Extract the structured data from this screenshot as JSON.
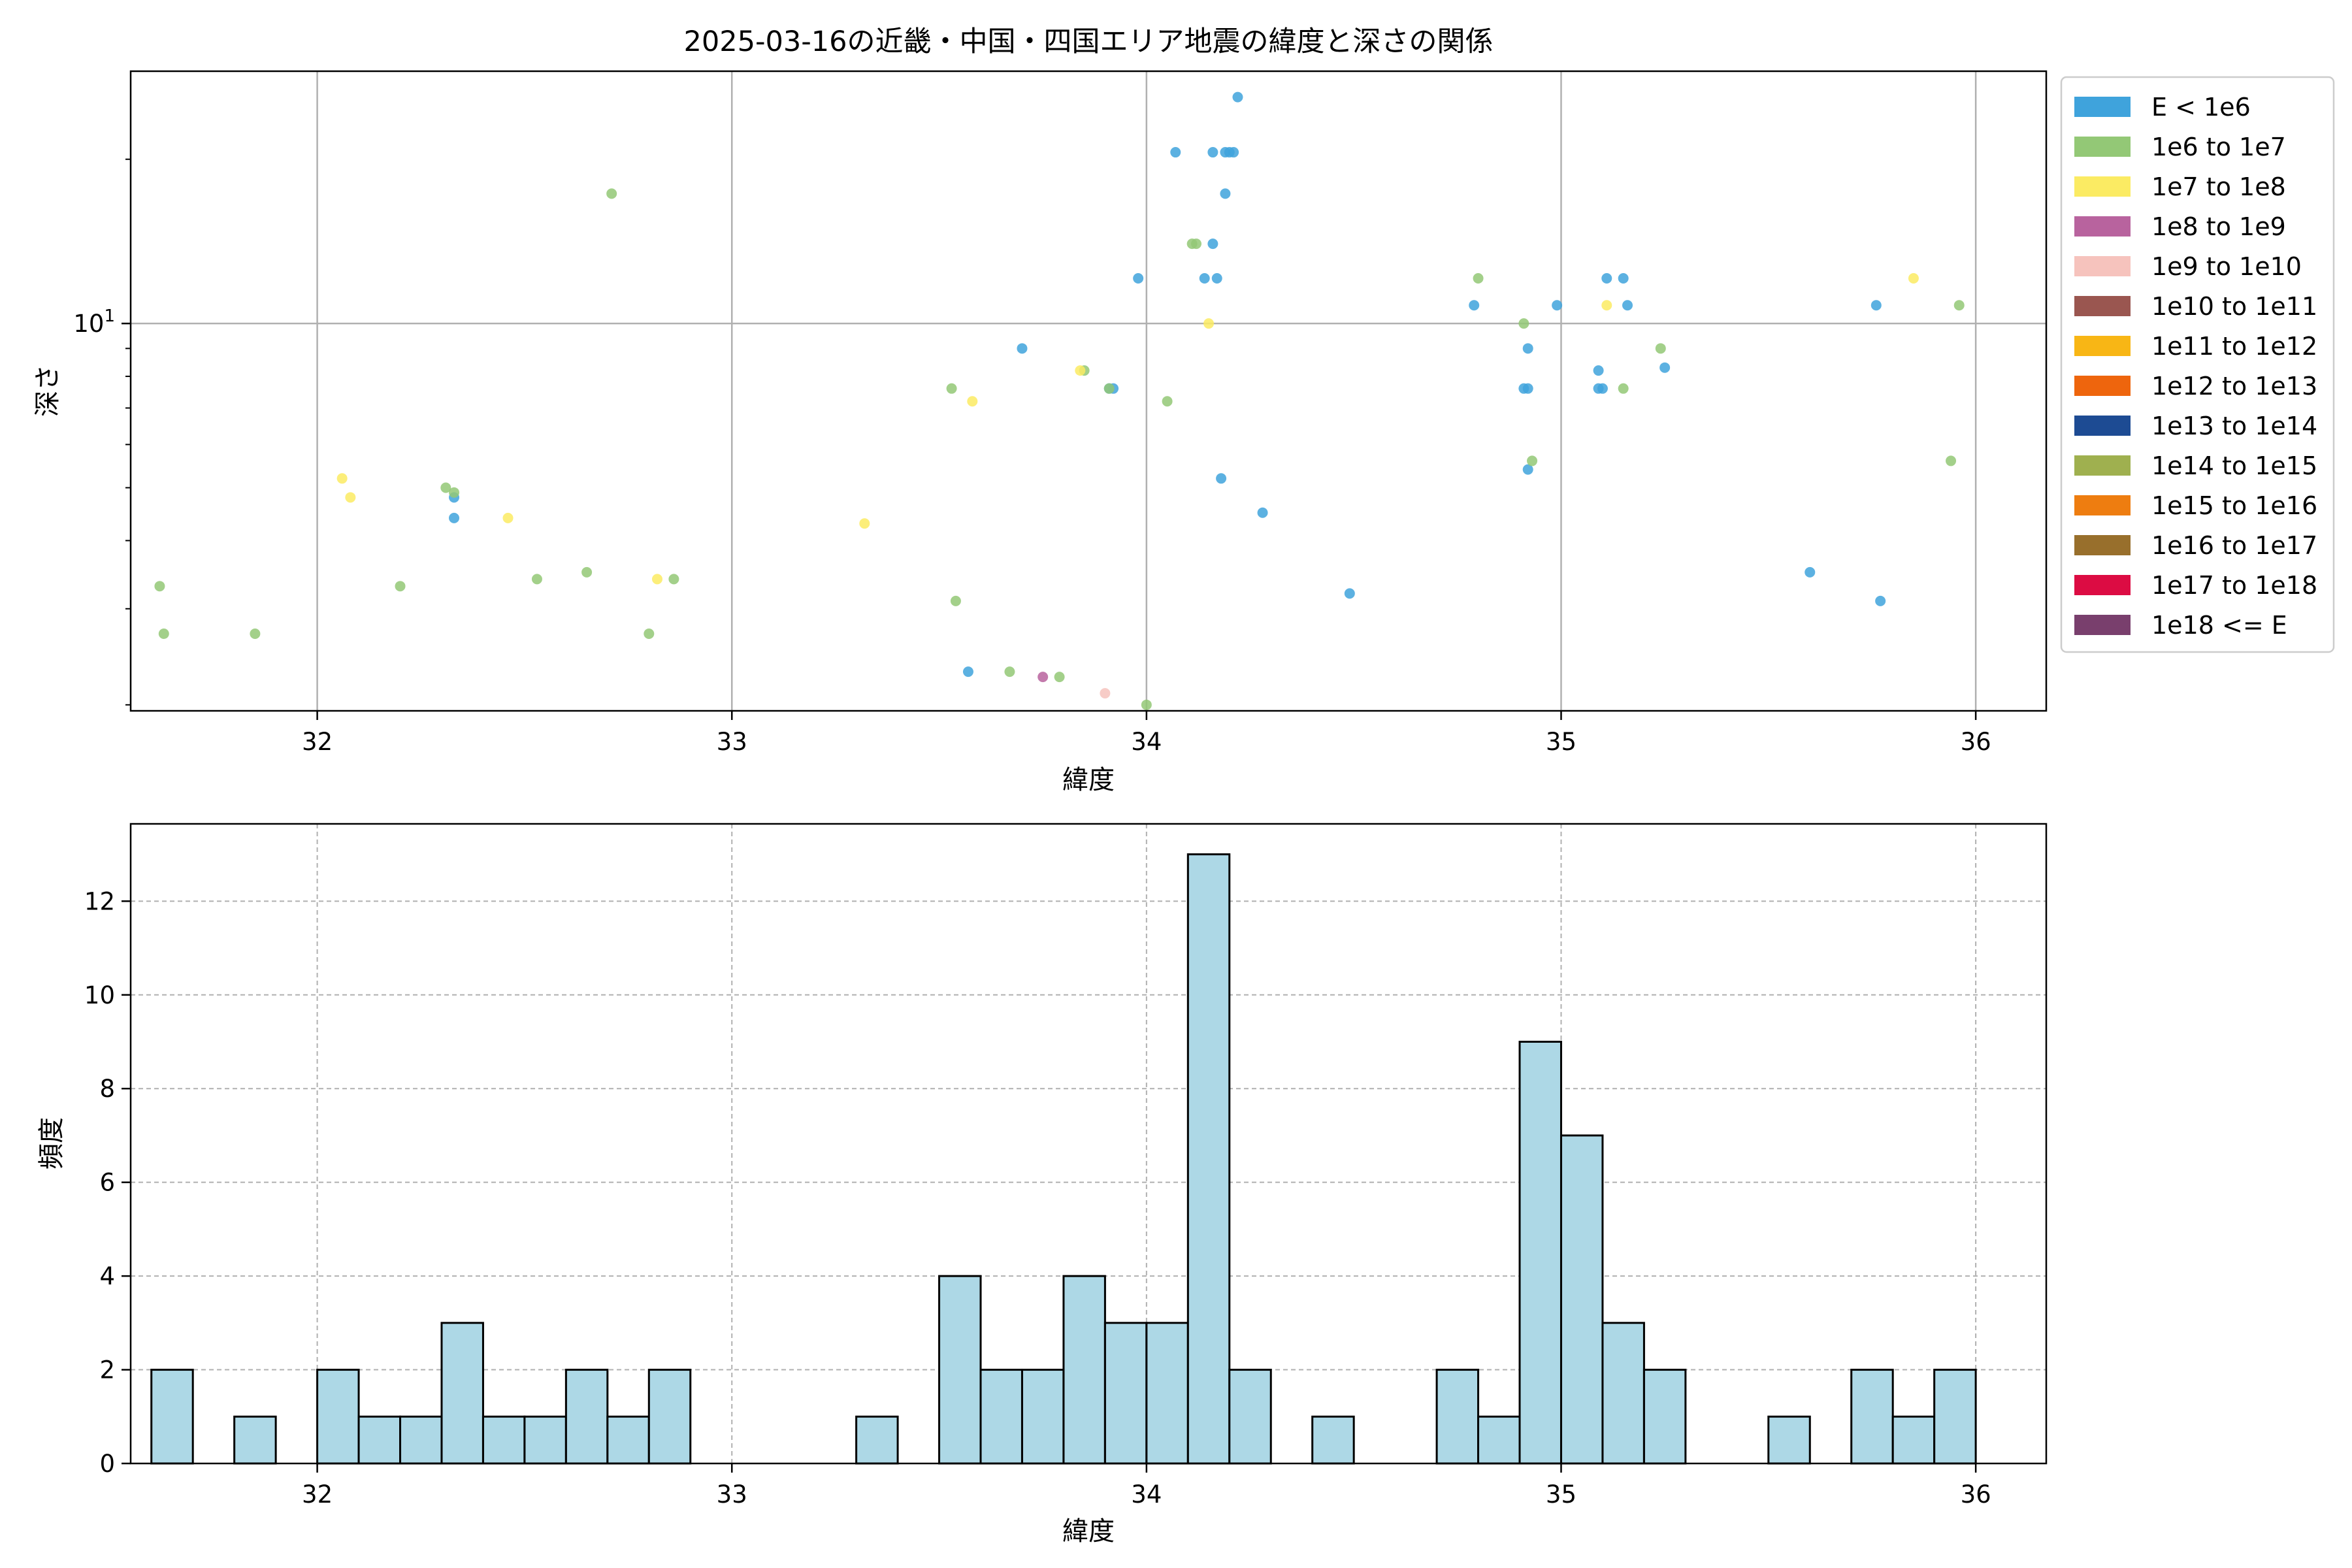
{
  "chart_data": [
    {
      "type": "scatter",
      "title": "2025-03-16の近畿・中国・四国エリア地震の緯度と深さの関係",
      "xlabel": "緯度",
      "ylabel": "深さ",
      "xlim": [
        31.55,
        36.17
      ],
      "ylim": [
        1.95,
        29
      ],
      "yscale": "log",
      "xticks": [
        32,
        33,
        34,
        35,
        36
      ],
      "xtick_labels": [
        "32",
        "33",
        "34",
        "35",
        "36"
      ],
      "ytick_label": "10¹",
      "grid": true,
      "legend_placement": "outside-right-top",
      "legend": [
        {
          "label": "E < 1e6",
          "color": "#3fa3dc"
        },
        {
          "label": "1e6 to 1e7",
          "color": "#93c876"
        },
        {
          "label": "1e7 to 1e8",
          "color": "#fbeb63"
        },
        {
          "label": "1e8 to 1e9",
          "color": "#b8639e"
        },
        {
          "label": "1e9 to 1e10",
          "color": "#f6c3bd"
        },
        {
          "label": "1e10 to 1e11",
          "color": "#9a5650"
        },
        {
          "label": "1e11 to 1e12",
          "color": "#f8b615"
        },
        {
          "label": "1e12 to 1e13",
          "color": "#ee650d"
        },
        {
          "label": "1e13 to 1e14",
          "color": "#1d4b93"
        },
        {
          "label": "1e14 to 1e15",
          "color": "#9fb04f"
        },
        {
          "label": "1e15 to 1e16",
          "color": "#ee7d10"
        },
        {
          "label": "1e16 to 1e17",
          "color": "#986f2c"
        },
        {
          "label": "1e17 to 1e18",
          "color": "#dc0c43"
        },
        {
          "label": "1e18 <= E",
          "color": "#793f6d"
        }
      ],
      "series": [
        {
          "color": "#3fa3dc",
          "points": [
            [
              32.33,
              4.8
            ],
            [
              32.33,
              4.4
            ],
            [
              33.57,
              2.3
            ],
            [
              33.7,
              9.0
            ],
            [
              33.91,
              7.6
            ],
            [
              33.92,
              7.6
            ],
            [
              33.98,
              12.1
            ],
            [
              34.07,
              20.6
            ],
            [
              34.14,
              12.1
            ],
            [
              34.16,
              20.6
            ],
            [
              34.16,
              14.0
            ],
            [
              34.17,
              12.1
            ],
            [
              34.18,
              5.2
            ],
            [
              34.19,
              20.6
            ],
            [
              34.19,
              17.3
            ],
            [
              34.2,
              20.6
            ],
            [
              34.21,
              20.6
            ],
            [
              34.22,
              26.0
            ],
            [
              34.28,
              4.5
            ],
            [
              34.49,
              3.2
            ],
            [
              34.79,
              10.8
            ],
            [
              34.99,
              10.8
            ],
            [
              34.91,
              7.6
            ],
            [
              34.92,
              7.6
            ],
            [
              34.92,
              9.0
            ],
            [
              34.92,
              5.4
            ],
            [
              35.09,
              8.2
            ],
            [
              35.09,
              7.6
            ],
            [
              35.1,
              7.6
            ],
            [
              35.11,
              12.1
            ],
            [
              35.15,
              12.1
            ],
            [
              35.16,
              10.8
            ],
            [
              35.25,
              8.3
            ],
            [
              35.6,
              3.5
            ],
            [
              35.76,
              10.8
            ],
            [
              35.77,
              3.1
            ]
          ]
        },
        {
          "color": "#93c876",
          "points": [
            [
              31.62,
              3.3
            ],
            [
              31.63,
              2.7
            ],
            [
              31.85,
              2.7
            ],
            [
              32.2,
              3.3
            ],
            [
              32.31,
              5.0
            ],
            [
              32.33,
              4.9
            ],
            [
              32.53,
              3.4
            ],
            [
              32.65,
              3.5
            ],
            [
              32.71,
              17.3
            ],
            [
              32.8,
              2.7
            ],
            [
              32.86,
              3.4
            ],
            [
              33.53,
              7.6
            ],
            [
              33.54,
              3.1
            ],
            [
              33.67,
              2.3
            ],
            [
              33.79,
              2.25
            ],
            [
              33.85,
              8.2
            ],
            [
              33.91,
              7.6
            ],
            [
              34.0,
              2.0
            ],
            [
              34.05,
              7.2
            ],
            [
              34.11,
              14.0
            ],
            [
              34.12,
              14.0
            ],
            [
              34.8,
              12.1
            ],
            [
              34.91,
              10.0
            ],
            [
              34.93,
              5.6
            ],
            [
              35.15,
              7.6
            ],
            [
              35.24,
              9.0
            ],
            [
              35.94,
              5.6
            ],
            [
              35.96,
              10.8
            ]
          ]
        },
        {
          "color": "#fbeb63",
          "points": [
            [
              32.06,
              5.2
            ],
            [
              32.08,
              4.8
            ],
            [
              32.46,
              4.4
            ],
            [
              32.82,
              3.4
            ],
            [
              33.32,
              4.3
            ],
            [
              33.58,
              7.2
            ],
            [
              33.84,
              8.2
            ],
            [
              34.15,
              10.0
            ],
            [
              35.11,
              10.8
            ],
            [
              35.85,
              12.1
            ]
          ]
        },
        {
          "color": "#b8639e",
          "points": [
            [
              33.75,
              2.25
            ]
          ]
        },
        {
          "color": "#f6c3bd",
          "points": [
            [
              33.9,
              2.1
            ]
          ]
        }
      ]
    },
    {
      "type": "bar",
      "subtype": "histogram",
      "xlabel": "緯度",
      "ylabel": "頻度",
      "xlim": [
        31.55,
        36.17
      ],
      "ylim": [
        0,
        13.65
      ],
      "xticks": [
        32,
        33,
        34,
        35,
        36
      ],
      "xtick_labels": [
        "32",
        "33",
        "34",
        "35",
        "36"
      ],
      "yticks": [
        0,
        2,
        4,
        6,
        8,
        10,
        12
      ],
      "ytick_labels": [
        "0",
        "2",
        "4",
        "6",
        "8",
        "10",
        "12"
      ],
      "grid": true,
      "bin_start": 31.6,
      "bin_width": 0.1,
      "bar_color": "#add8e6",
      "edge_color": "#000000",
      "values": [
        2,
        0,
        1,
        0,
        2,
        1,
        1,
        3,
        1,
        1,
        2,
        1,
        2,
        0,
        0,
        0,
        0,
        1,
        0,
        4,
        2,
        2,
        4,
        3,
        3,
        13,
        2,
        0,
        1,
        0,
        0,
        2,
        1,
        9,
        7,
        3,
        2,
        0,
        0,
        1,
        0,
        2,
        1,
        2
      ]
    }
  ]
}
